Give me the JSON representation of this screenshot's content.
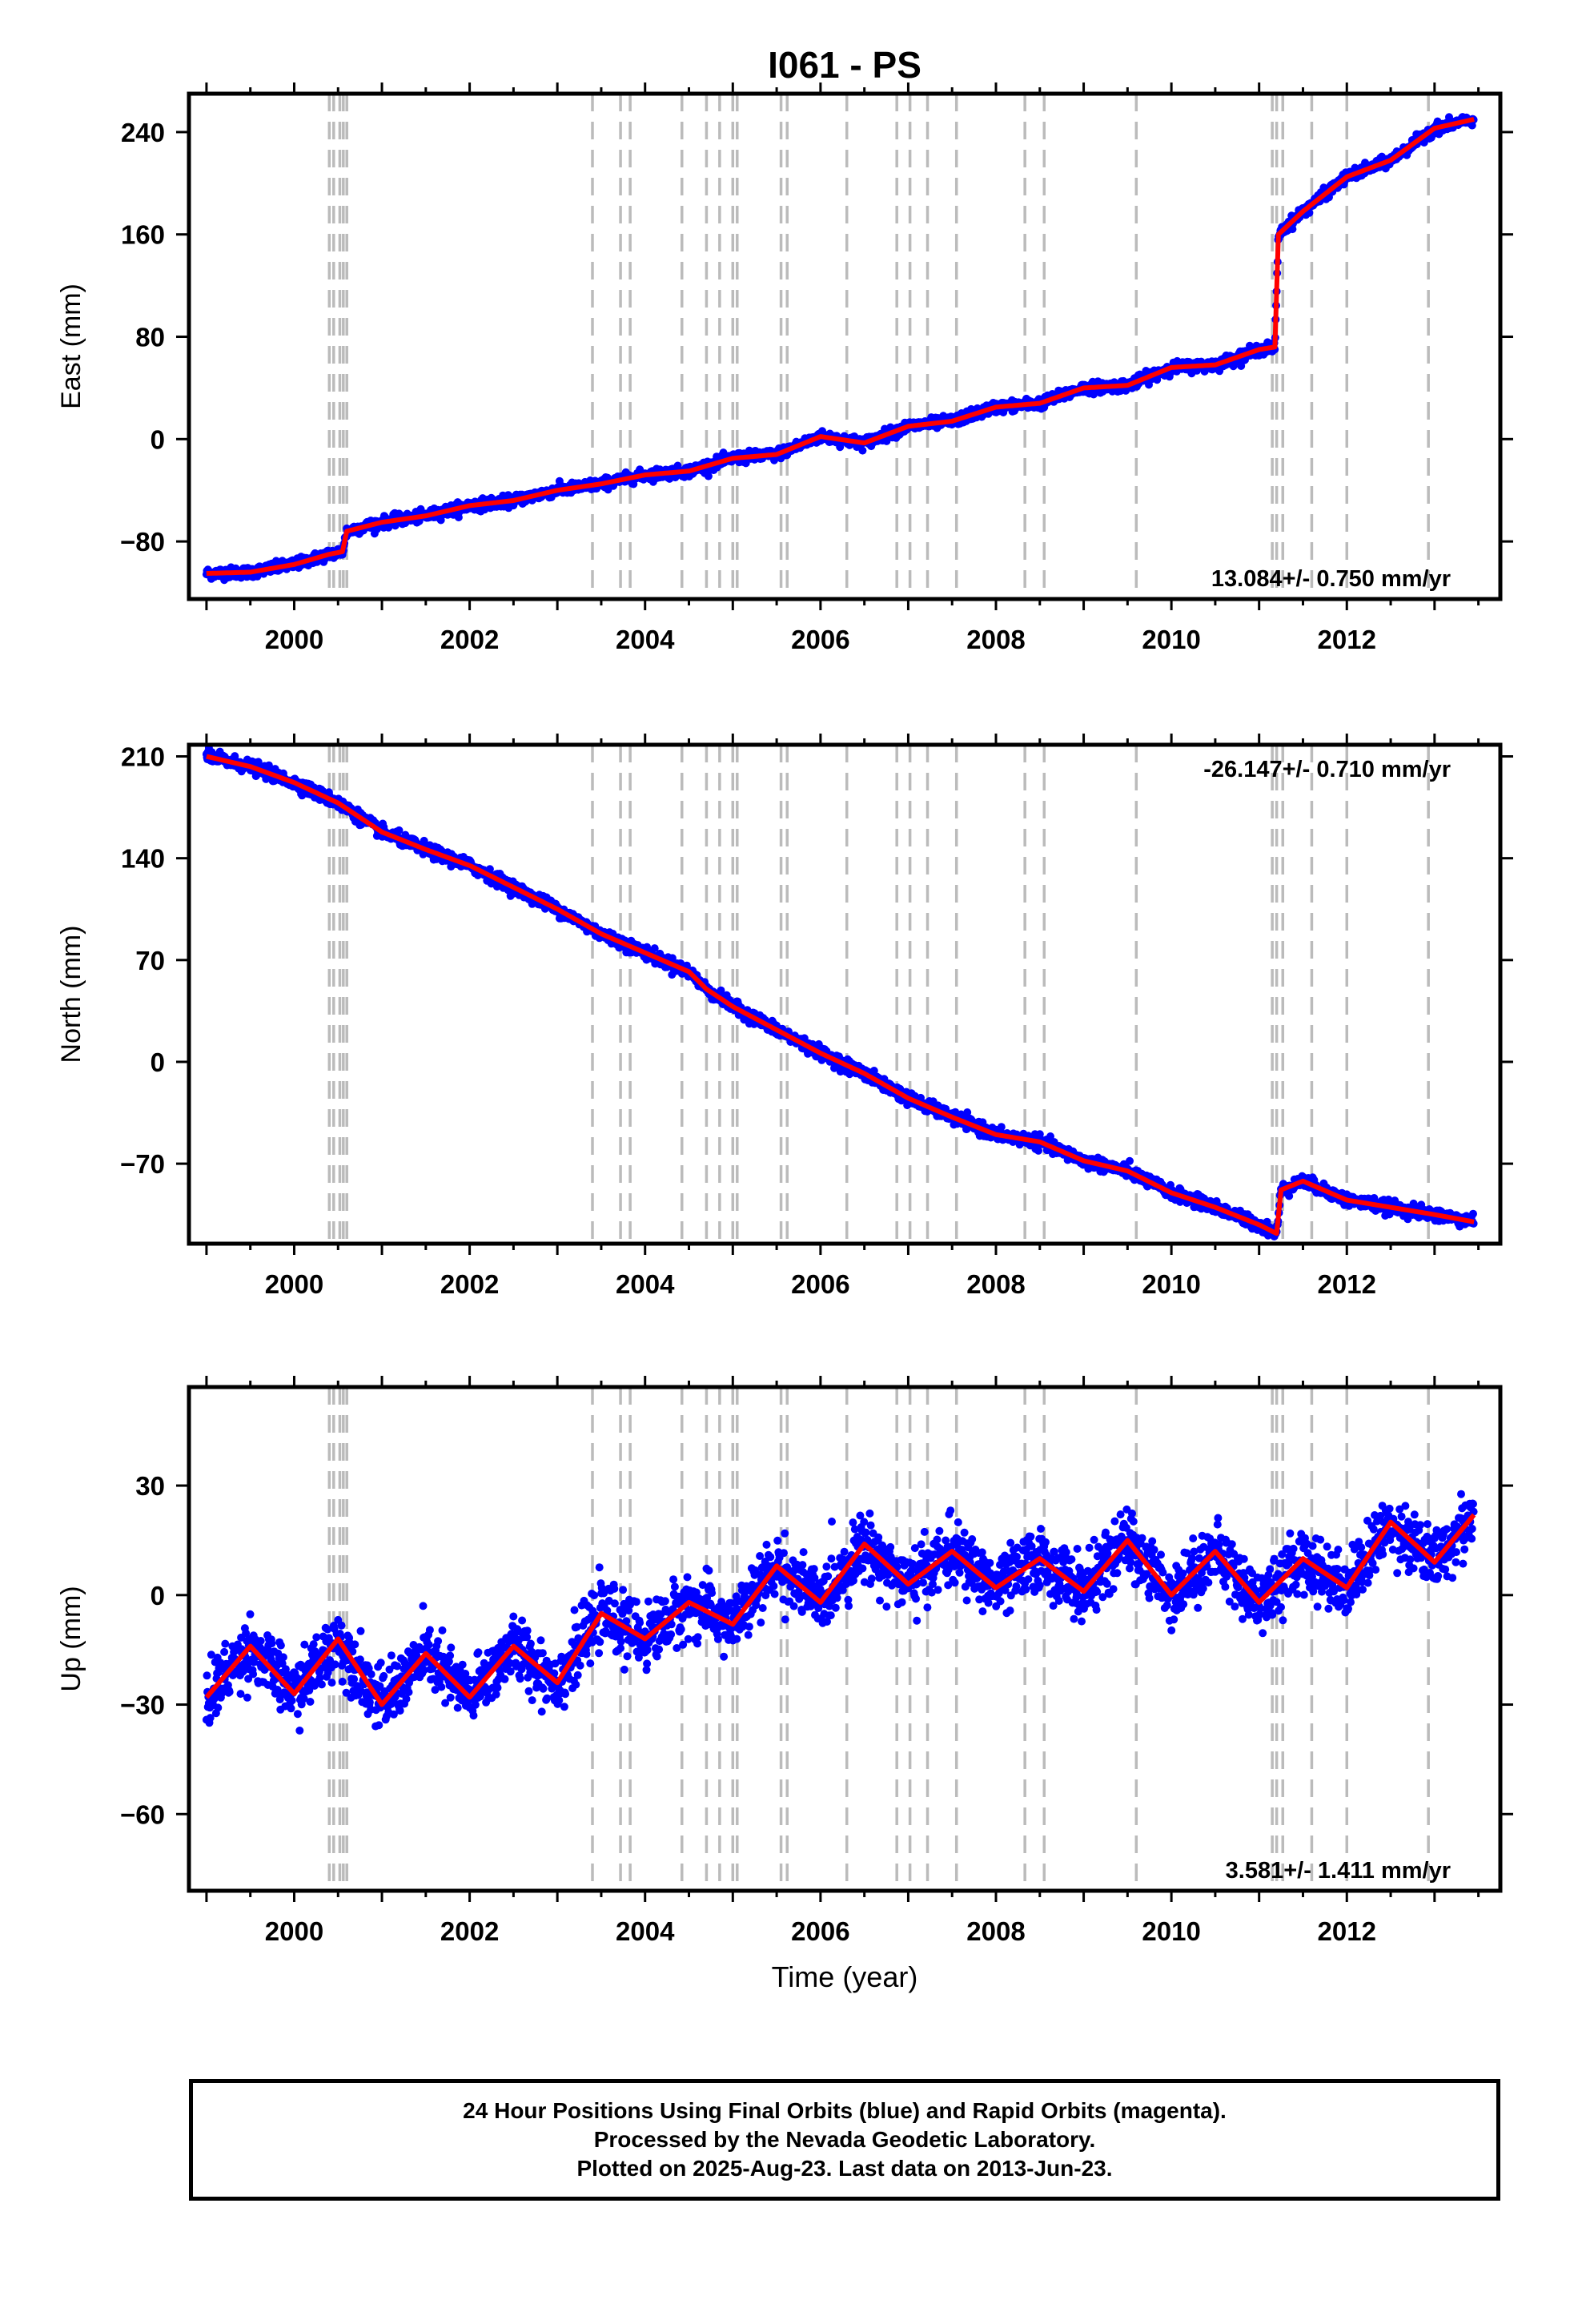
{
  "chart_data": [
    {
      "type": "scatter",
      "panel": "east",
      "title": "I061 - PS",
      "xlabel": "",
      "ylabel": "East (mm)",
      "xlim": [
        1998.8,
        2013.75
      ],
      "ylim": [
        -125,
        270
      ],
      "xticks": [
        "2000",
        "2002",
        "2004",
        "2006",
        "2008",
        "2010",
        "2012"
      ],
      "yticks": [
        "-80",
        "0",
        "80",
        "160",
        "240"
      ],
      "rate_label": "13.084+/- 0.750 mm/yr",
      "rate_position": "bottom-right",
      "grid": false,
      "series": [
        {
          "name": "Final Orbits",
          "color": "#0000ff",
          "x": [
            1999.0,
            1999.5,
            2000.0,
            2000.4,
            2000.55,
            2000.6,
            2001.0,
            2001.5,
            2002.0,
            2002.5,
            2003.0,
            2003.5,
            2004.0,
            2004.5,
            2005.0,
            2005.5,
            2006.0,
            2006.5,
            2007.0,
            2007.5,
            2008.0,
            2008.5,
            2009.0,
            2009.5,
            2010.0,
            2010.5,
            2011.0,
            2011.18,
            2011.22,
            2011.5,
            2012.0,
            2012.5,
            2013.0,
            2013.45
          ],
          "y": [
            -105,
            -104,
            -98,
            -90,
            -88,
            -72,
            -65,
            -60,
            -52,
            -48,
            -40,
            -35,
            -28,
            -25,
            -15,
            -12,
            2,
            -3,
            10,
            14,
            25,
            28,
            40,
            42,
            56,
            58,
            70,
            72,
            160,
            178,
            205,
            218,
            243,
            250
          ]
        },
        {
          "name": "Model",
          "color": "#ff0000",
          "x": [
            1999.0,
            1999.5,
            2000.0,
            2000.4,
            2000.55,
            2000.6,
            2001.0,
            2001.5,
            2002.0,
            2002.5,
            2003.0,
            2003.5,
            2004.0,
            2004.5,
            2005.0,
            2005.5,
            2006.0,
            2006.5,
            2007.0,
            2007.5,
            2008.0,
            2008.5,
            2009.0,
            2009.5,
            2010.0,
            2010.5,
            2011.0,
            2011.18,
            2011.22,
            2011.5,
            2012.0,
            2012.5,
            2013.0,
            2013.45
          ],
          "y": [
            -105,
            -104,
            -98,
            -90,
            -88,
            -72,
            -65,
            -60,
            -52,
            -48,
            -40,
            -35,
            -28,
            -25,
            -15,
            -12,
            2,
            -3,
            10,
            14,
            25,
            28,
            40,
            42,
            56,
            58,
            70,
            72,
            160,
            178,
            205,
            218,
            243,
            250
          ]
        }
      ],
      "noise_mm": 3.5
    },
    {
      "type": "scatter",
      "panel": "north",
      "xlabel": "",
      "ylabel": "North (mm)",
      "xlim": [
        1998.8,
        2013.75
      ],
      "ylim": [
        -125,
        218
      ],
      "xticks": [
        "2000",
        "2002",
        "2004",
        "2006",
        "2008",
        "2010",
        "2012"
      ],
      "yticks": [
        "-70",
        "0",
        "70",
        "140",
        "210"
      ],
      "rate_label": "-26.147+/- 0.710 mm/yr",
      "rate_position": "top-right",
      "grid": false,
      "series": [
        {
          "name": "Final Orbits",
          "color": "#0000ff",
          "x": [
            1999.0,
            1999.5,
            2000.0,
            2000.5,
            2001.0,
            2001.5,
            2002.0,
            2002.5,
            2003.0,
            2003.5,
            2004.0,
            2004.5,
            2004.7,
            2005.0,
            2005.5,
            2006.0,
            2006.5,
            2007.0,
            2007.5,
            2008.0,
            2008.5,
            2009.0,
            2009.5,
            2010.0,
            2010.5,
            2011.0,
            2011.2,
            2011.25,
            2011.5,
            2012.0,
            2012.5,
            2013.0,
            2013.45
          ],
          "y": [
            210,
            203,
            192,
            178,
            158,
            146,
            135,
            120,
            105,
            88,
            75,
            62,
            50,
            38,
            22,
            6,
            -8,
            -25,
            -38,
            -50,
            -55,
            -68,
            -75,
            -90,
            -100,
            -112,
            -118,
            -88,
            -82,
            -95,
            -100,
            -105,
            -110
          ]
        },
        {
          "name": "Model",
          "color": "#ff0000",
          "x": [
            1999.0,
            1999.5,
            2000.0,
            2000.5,
            2001.0,
            2001.5,
            2002.0,
            2002.5,
            2003.0,
            2003.5,
            2004.0,
            2004.5,
            2004.7,
            2005.0,
            2005.5,
            2006.0,
            2006.5,
            2007.0,
            2007.5,
            2008.0,
            2008.5,
            2009.0,
            2009.5,
            2010.0,
            2010.5,
            2011.0,
            2011.2,
            2011.25,
            2011.5,
            2012.0,
            2012.5,
            2013.0,
            2013.45
          ],
          "y": [
            210,
            203,
            192,
            178,
            158,
            146,
            135,
            120,
            105,
            88,
            75,
            62,
            50,
            38,
            22,
            6,
            -8,
            -25,
            -38,
            -50,
            -55,
            -68,
            -75,
            -90,
            -100,
            -112,
            -118,
            -88,
            -82,
            -95,
            -100,
            -105,
            -110
          ]
        }
      ],
      "noise_mm": 3.5
    },
    {
      "type": "scatter",
      "panel": "up",
      "xlabel": "Time (year)",
      "ylabel": "Up (mm)",
      "xlim": [
        1998.8,
        2013.75
      ],
      "ylim": [
        -81,
        57
      ],
      "xticks": [
        "2000",
        "2002",
        "2004",
        "2006",
        "2008",
        "2010",
        "2012"
      ],
      "yticks": [
        "-60",
        "-30",
        "0",
        "30"
      ],
      "rate_label": "3.581+/- 1.411 mm/yr",
      "rate_position": "bottom-right",
      "grid": false,
      "series": [
        {
          "name": "Final Orbits",
          "color": "#0000ff",
          "x": [
            1999.0,
            1999.5,
            2000.0,
            2000.5,
            2001.0,
            2001.5,
            2002.0,
            2002.5,
            2003.0,
            2003.5,
            2004.0,
            2004.5,
            2005.0,
            2005.5,
            2006.0,
            2006.5,
            2007.0,
            2007.5,
            2008.0,
            2008.5,
            2009.0,
            2009.5,
            2010.0,
            2010.5,
            2011.0,
            2011.5,
            2012.0,
            2012.5,
            2013.0,
            2013.45
          ],
          "y": [
            -28,
            -14,
            -27,
            -12,
            -30,
            -16,
            -28,
            -14,
            -24,
            -5,
            -12,
            -2,
            -8,
            8,
            -2,
            14,
            3,
            12,
            2,
            10,
            1,
            15,
            0,
            12,
            -2,
            10,
            2,
            20,
            9,
            22
          ]
        },
        {
          "name": "Model",
          "color": "#ff0000",
          "x": [
            1999.0,
            1999.5,
            2000.0,
            2000.5,
            2001.0,
            2001.5,
            2002.0,
            2002.5,
            2003.0,
            2003.5,
            2004.0,
            2004.5,
            2005.0,
            2005.5,
            2006.0,
            2006.5,
            2007.0,
            2007.5,
            2008.0,
            2008.5,
            2009.0,
            2009.5,
            2010.0,
            2010.5,
            2011.0,
            2011.5,
            2012.0,
            2012.5,
            2013.0,
            2013.45
          ],
          "y": [
            -28,
            -14,
            -27,
            -12,
            -30,
            -16,
            -28,
            -14,
            -24,
            -5,
            -12,
            -2,
            -8,
            8,
            -2,
            14,
            3,
            12,
            2,
            10,
            1,
            15,
            0,
            12,
            -2,
            10,
            2,
            20,
            9,
            22
          ]
        }
      ],
      "noise_mm": 7
    }
  ],
  "event_lines": [
    2000.4,
    2000.45,
    2000.52,
    2000.56,
    2000.6,
    2003.4,
    2003.72,
    2003.83,
    2004.42,
    2004.7,
    2004.85,
    2005.0,
    2005.05,
    2005.55,
    2005.62,
    2006.3,
    2006.87,
    2007.02,
    2007.22,
    2007.55,
    2008.33,
    2008.55,
    2009.6,
    2011.15,
    2011.2,
    2011.27,
    2011.6,
    2012.0,
    2012.93
  ],
  "event_line_color": "#bbbbbb",
  "caption": {
    "line1": "24 Hour Positions Using Final Orbits (blue) and Rapid Orbits (magenta).",
    "line2": "Processed by the Nevada Geodetic Laboratory.",
    "line3": "Plotted on 2025-Aug-23. Last data on 2013-Jun-23."
  }
}
